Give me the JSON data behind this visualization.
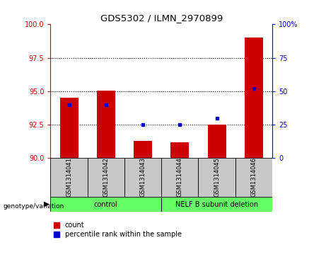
{
  "title": "GDS5302 / ILMN_2970899",
  "samples": [
    "GSM1314041",
    "GSM1314042",
    "GSM1314043",
    "GSM1314044",
    "GSM1314045",
    "GSM1314046"
  ],
  "count_values": [
    94.5,
    95.05,
    91.3,
    91.2,
    92.5,
    99.0
  ],
  "percentile_values": [
    40,
    40,
    25,
    25,
    30,
    52
  ],
  "group_labels": [
    "control",
    "NELF B subunit deletion"
  ],
  "group_sizes": [
    3,
    3
  ],
  "group_color": "#66FF66",
  "left_ylim": [
    90,
    100
  ],
  "right_ylim": [
    0,
    100
  ],
  "left_yticks": [
    90,
    92.5,
    95,
    97.5,
    100
  ],
  "right_yticks": [
    0,
    25,
    50,
    75,
    100
  ],
  "right_yticklabels": [
    "0",
    "25",
    "50",
    "75",
    "100%"
  ],
  "hlines": [
    92.5,
    95.0,
    97.5
  ],
  "bar_color": "#CC0000",
  "dot_color": "#0000CC",
  "bar_width": 0.5,
  "left_tick_color": "#CC0000",
  "right_tick_color": "#0000CC",
  "sample_bg_color": "#C8C8C8",
  "legend_count_label": "count",
  "legend_pct_label": "percentile rank within the sample",
  "genotype_label": "genotype/variation"
}
